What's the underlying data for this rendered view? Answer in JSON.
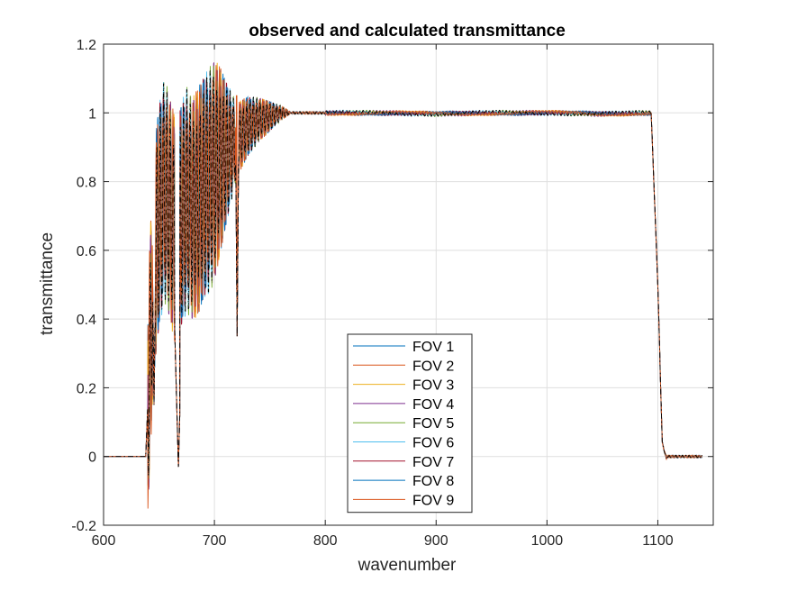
{
  "chart_data": {
    "type": "line",
    "title": "observed and calculated transmittance",
    "xlabel": "wavenumber",
    "ylabel": "transmittance",
    "xlim": [
      600,
      1150
    ],
    "ylim": [
      -0.2,
      1.2
    ],
    "xticks": [
      600,
      700,
      800,
      900,
      1000,
      1100
    ],
    "yticks": [
      -0.2,
      0,
      0.2,
      0.4,
      0.6,
      0.8,
      1,
      1.2
    ],
    "xtick_labels": [
      "600",
      "700",
      "800",
      "900",
      "1000",
      "1100"
    ],
    "ytick_labels": [
      "-0.2",
      "0",
      "0.2",
      "0.4",
      "0.6",
      "0.8",
      "1",
      "1.2"
    ],
    "grid": true,
    "legend_position": "bottom-center",
    "series": [
      {
        "name": "FOV 1",
        "color": "#0072BD"
      },
      {
        "name": "FOV 2",
        "color": "#D95319"
      },
      {
        "name": "FOV 3",
        "color": "#EDB120"
      },
      {
        "name": "FOV 4",
        "color": "#7E2F8E"
      },
      {
        "name": "FOV 5",
        "color": "#77AC30"
      },
      {
        "name": "FOV 6",
        "color": "#4DBEEE"
      },
      {
        "name": "FOV 7",
        "color": "#A2142F"
      },
      {
        "name": "FOV 8",
        "color": "#0072BD"
      },
      {
        "name": "FOV 9",
        "color": "#D95319"
      }
    ],
    "reference_series": {
      "style": "dash-dot",
      "color": "#000000"
    },
    "envelope": {
      "x": [
        600,
        638,
        645,
        650,
        655,
        660,
        665,
        670,
        675,
        680,
        685,
        690,
        695,
        700,
        705,
        710,
        715,
        720,
        725,
        730,
        740,
        750,
        760,
        770,
        800,
        850,
        900,
        950,
        1000,
        1050,
        1094,
        1100,
        1104,
        1108,
        1140
      ],
      "y": [
        0,
        0,
        0.55,
        0.7,
        0.78,
        0.72,
        0.65,
        0.7,
        0.75,
        0.72,
        0.74,
        0.78,
        0.8,
        0.83,
        0.86,
        0.88,
        0.9,
        0.92,
        0.94,
        0.96,
        0.98,
        0.99,
        1.0,
        1.0,
        1.0,
        1.0,
        0.997,
        1.0,
        1.0,
        0.997,
        1.0,
        0.5,
        0.05,
        0,
        0
      ]
    }
  }
}
